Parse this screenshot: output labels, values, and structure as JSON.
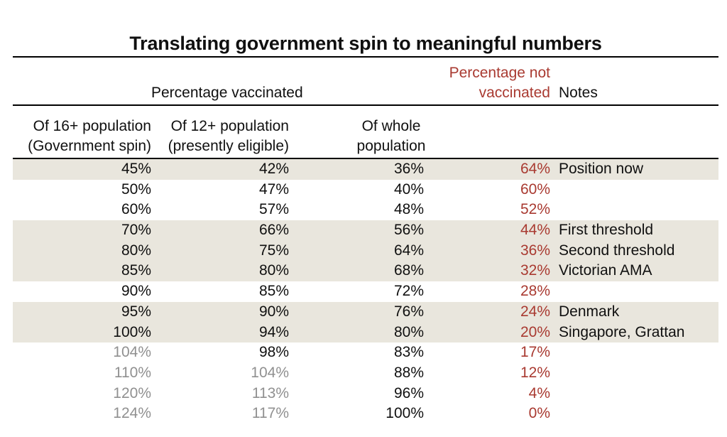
{
  "title": "Translating government spin to meaningful numbers",
  "colors": {
    "accent_red": "#a93a31",
    "row_shade": "#e9e6dd",
    "muted_gray": "#909090",
    "rule_black": "#000000"
  },
  "header": {
    "group_label": "Percentage vaccinated",
    "not_vaccinated_line1": "Percentage not",
    "not_vaccinated_line2": "vaccinated",
    "notes_label": "Notes",
    "sub": {
      "col1_line1": "Of 16+ population",
      "col1_line2": "(Government spin)",
      "col2_line1": "Of 12+ population",
      "col2_line2": "(presently eligible)",
      "col3_line1": "Of whole",
      "col3_line2": "population"
    }
  },
  "rows": [
    {
      "c1": "45%",
      "c2": "42%",
      "c3": "36%",
      "c4": "64%",
      "notes": "Position now",
      "shaded": true,
      "c1_gray": false,
      "c2_gray": false
    },
    {
      "c1": "50%",
      "c2": "47%",
      "c3": "40%",
      "c4": "60%",
      "notes": "",
      "shaded": false,
      "c1_gray": false,
      "c2_gray": false
    },
    {
      "c1": "60%",
      "c2": "57%",
      "c3": "48%",
      "c4": "52%",
      "notes": "",
      "shaded": false,
      "c1_gray": false,
      "c2_gray": false
    },
    {
      "c1": "70%",
      "c2": "66%",
      "c3": "56%",
      "c4": "44%",
      "notes": "First threshold",
      "shaded": true,
      "c1_gray": false,
      "c2_gray": false
    },
    {
      "c1": "80%",
      "c2": "75%",
      "c3": "64%",
      "c4": "36%",
      "notes": "Second threshold",
      "shaded": true,
      "c1_gray": false,
      "c2_gray": false
    },
    {
      "c1": "85%",
      "c2": "80%",
      "c3": "68%",
      "c4": "32%",
      "notes": "Victorian AMA",
      "shaded": true,
      "c1_gray": false,
      "c2_gray": false
    },
    {
      "c1": "90%",
      "c2": "85%",
      "c3": "72%",
      "c4": "28%",
      "notes": "",
      "shaded": false,
      "c1_gray": false,
      "c2_gray": false
    },
    {
      "c1": "95%",
      "c2": "90%",
      "c3": "76%",
      "c4": "24%",
      "notes": "Denmark",
      "shaded": true,
      "c1_gray": false,
      "c2_gray": false
    },
    {
      "c1": "100%",
      "c2": "94%",
      "c3": "80%",
      "c4": "20%",
      "notes": "Singapore, Grattan",
      "shaded": true,
      "c1_gray": false,
      "c2_gray": false
    },
    {
      "c1": "104%",
      "c2": "98%",
      "c3": "83%",
      "c4": "17%",
      "notes": "",
      "shaded": false,
      "c1_gray": true,
      "c2_gray": false
    },
    {
      "c1": "110%",
      "c2": "104%",
      "c3": "88%",
      "c4": "12%",
      "notes": "",
      "shaded": false,
      "c1_gray": true,
      "c2_gray": true
    },
    {
      "c1": "120%",
      "c2": "113%",
      "c3": "96%",
      "c4": "4%",
      "notes": "",
      "shaded": false,
      "c1_gray": true,
      "c2_gray": true
    },
    {
      "c1": "124%",
      "c2": "117%",
      "c3": "100%",
      "c4": "0%",
      "notes": "",
      "shaded": false,
      "c1_gray": true,
      "c2_gray": true
    }
  ],
  "chart_data": {
    "type": "table",
    "title": "Translating government spin to meaningful numbers",
    "column_groups": [
      "Percentage vaccinated",
      "Percentage not vaccinated",
      "Notes"
    ],
    "columns": [
      "Of 16+ population (Government spin)",
      "Of 12+ population (presently eligible)",
      "Of whole population",
      "Percentage not vaccinated",
      "Notes"
    ],
    "rows": [
      [
        "45%",
        "42%",
        "36%",
        "64%",
        "Position now"
      ],
      [
        "50%",
        "47%",
        "40%",
        "60%",
        ""
      ],
      [
        "60%",
        "57%",
        "48%",
        "52%",
        ""
      ],
      [
        "70%",
        "66%",
        "56%",
        "44%",
        "First threshold"
      ],
      [
        "80%",
        "75%",
        "64%",
        "36%",
        "Second threshold"
      ],
      [
        "85%",
        "80%",
        "68%",
        "32%",
        "Victorian AMA"
      ],
      [
        "90%",
        "85%",
        "72%",
        "28%",
        ""
      ],
      [
        "95%",
        "90%",
        "76%",
        "24%",
        "Denmark"
      ],
      [
        "100%",
        "94%",
        "80%",
        "20%",
        "Singapore, Grattan"
      ],
      [
        "104%",
        "98%",
        "83%",
        "17%",
        ""
      ],
      [
        "110%",
        "104%",
        "88%",
        "12%",
        ""
      ],
      [
        "120%",
        "113%",
        "96%",
        "4%",
        ""
      ],
      [
        "124%",
        "117%",
        "100%",
        "0%",
        ""
      ]
    ],
    "highlighted_row_indices": [
      0,
      3,
      4,
      5,
      7,
      8
    ],
    "grayed_values_note": "Values over 100% are rendered in gray",
    "layout_hints": {
      "grid": "horizontal rules only",
      "not_vaccinated_color": "#a93a31"
    }
  }
}
